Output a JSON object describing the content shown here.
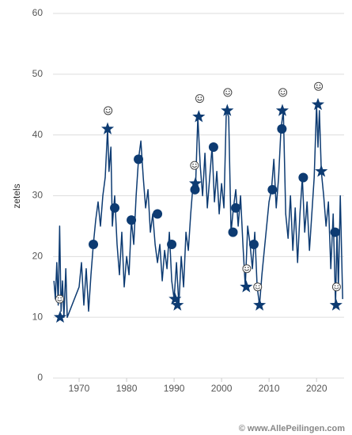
{
  "chart_data": {
    "type": "line",
    "y_label": "zetels",
    "credit": "© www.AllePeilingen.com",
    "xlim": [
      1964.5,
      2025.8
    ],
    "xticks": [
      1970,
      1980,
      1990,
      2000,
      2010,
      2020
    ],
    "ylim": [
      0,
      60
    ],
    "yticks": [
      0,
      10,
      20,
      30,
      40,
      50,
      60
    ],
    "grid": true,
    "series": [
      {
        "color": "#0d3b72",
        "x": [
          1964.7,
          1965,
          1965.3,
          1965.6,
          1965.9,
          1966.2,
          1966.5,
          1966.8,
          1967.2,
          1967.5,
          1970,
          1970.5,
          1971,
          1971.5,
          1972,
          1972.5,
          1973,
          1973.5,
          1974,
          1974.5,
          1975,
          1975.5,
          1976,
          1976.3,
          1976.7,
          1977,
          1977.5,
          1978,
          1978.5,
          1979,
          1979.5,
          1980,
          1980.5,
          1981,
          1981.5,
          1982,
          1982.5,
          1983,
          1983.5,
          1984,
          1984.5,
          1985,
          1985.5,
          1986,
          1986.5,
          1987,
          1987.5,
          1988,
          1988.5,
          1989,
          1989.5,
          1990,
          1990.5,
          1991,
          1991.5,
          1992,
          1992.5,
          1993,
          1993.5,
          1994,
          1994.5,
          1995,
          1995.5,
          1996,
          1996.5,
          1997,
          1997.5,
          1998,
          1998.5,
          1999,
          1999.5,
          2000,
          2000.5,
          2001,
          2001.5,
          2002,
          2002.5,
          2003,
          2003.5,
          2004,
          2004.5,
          2005,
          2005.5,
          2006,
          2006.5,
          2007,
          2007.5,
          2008,
          2008.5,
          2009,
          2009.5,
          2010,
          2010.5,
          2011,
          2011.5,
          2012,
          2012.5,
          2013,
          2013.5,
          2014,
          2014.5,
          2015,
          2015.5,
          2016,
          2016.5,
          2017,
          2017.5,
          2018,
          2018.5,
          2019,
          2019.5,
          2020,
          2020.3,
          2020.6,
          2021,
          2021.5,
          2022,
          2022.5,
          2023,
          2023.5,
          2024,
          2024.3,
          2024.6,
          2025,
          2025.5
        ],
        "values": [
          16,
          13,
          19,
          12,
          25,
          11,
          16,
          10,
          18,
          10,
          15,
          19,
          12,
          18,
          11,
          17,
          22,
          26,
          29,
          25,
          30,
          33,
          41,
          34,
          38,
          25,
          30,
          22,
          17,
          24,
          15,
          20,
          17,
          26,
          22,
          30,
          36,
          39,
          33,
          28,
          31,
          24,
          27,
          22,
          19,
          22,
          16,
          21,
          18,
          24,
          16,
          13,
          19,
          12,
          20,
          15,
          24,
          21,
          27,
          32,
          31,
          43,
          35,
          30,
          37,
          28,
          33,
          38,
          29,
          34,
          27,
          32,
          28,
          44,
          43,
          24,
          28,
          31,
          25,
          30,
          22,
          15,
          25,
          22,
          18,
          24,
          15,
          12,
          17,
          21,
          25,
          29,
          31,
          36,
          28,
          33,
          41,
          44,
          27,
          23,
          30,
          21,
          28,
          19,
          27,
          33,
          24,
          29,
          21,
          27,
          33,
          45,
          38,
          44,
          34,
          30,
          25,
          29,
          18,
          27,
          12,
          24,
          15,
          30,
          13
        ]
      }
    ],
    "markers": {
      "circle": {
        "x": [
          1973,
          1977.5,
          1981,
          1982.5,
          1986.5,
          1989.5,
          1994.4,
          1998.3,
          2002.4,
          2003,
          2006.8,
          2010.7,
          2012.7,
          2017.2,
          2023.9
        ],
        "y": [
          22,
          28,
          26,
          36,
          27,
          22,
          31,
          38,
          24,
          28,
          22,
          31,
          41,
          33,
          24
        ]
      },
      "star": {
        "x": [
          1966,
          1976,
          1990.2,
          1990.7,
          1994.5,
          1995.2,
          2001.2,
          2005.2,
          2008,
          2012.8,
          2020.3,
          2021,
          2024.1
        ],
        "y": [
          10,
          41,
          13,
          12,
          32,
          43,
          44,
          15,
          12,
          44,
          45,
          34,
          12
        ]
      },
      "smiley": {
        "x": [
          1965.9,
          1976.1,
          1994.3,
          1995.4,
          2001.3,
          2005.3,
          2007.6,
          2012.9,
          2020.4,
          2024.2
        ],
        "y": [
          13,
          44,
          35,
          46,
          47,
          18,
          15,
          47,
          48,
          15
        ]
      }
    }
  }
}
